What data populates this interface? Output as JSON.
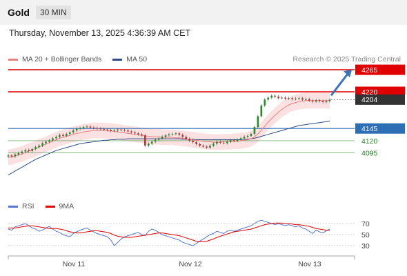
{
  "header": {
    "symbol": "Gold",
    "interval": "30 MIN"
  },
  "timestamp": "Thursday, November 13, 2025 4:36:39 AM CET",
  "legend": {
    "price": [
      {
        "label": "MA 20 + Bollinger Bands",
        "color": "#e88080"
      },
      {
        "label": "MA 50",
        "color": "#2c4a86"
      }
    ],
    "rsi": [
      {
        "label": "RSI",
        "color": "#5577cc"
      },
      {
        "label": "9MA",
        "color": "#e00000"
      }
    ]
  },
  "watermark": "Research © 2025 Trading Central",
  "colors": {
    "resistance": "#e00000",
    "support": "#2e6eb5",
    "target": "#3b73b9",
    "bull": "#2a8a2a",
    "bear": "#c03030",
    "price_tag": "#333333"
  },
  "chart_data": [
    {
      "type": "candlestick",
      "x_ticks": [
        "Nov 11",
        "Nov 12",
        "Nov 13"
      ],
      "last_price": {
        "label": "4204",
        "value": 4204
      },
      "levels": [
        {
          "label": "4265",
          "value": 4265,
          "kind": "resistance"
        },
        {
          "label": "4220",
          "value": 4220,
          "kind": "resistance"
        },
        {
          "label": "4145",
          "value": 4145,
          "kind": "pivot"
        },
        {
          "label": "4120",
          "value": 4120,
          "kind": "support"
        },
        {
          "label": "4095",
          "value": 4095,
          "kind": "support"
        }
      ],
      "arrow": {
        "from": 4204,
        "to": 4265,
        "direction": "up"
      },
      "close": [
        4090,
        4088,
        4092,
        4095,
        4098,
        4101,
        4099,
        4103,
        4107,
        4110,
        4115,
        4118,
        4121,
        4125,
        4128,
        4132,
        4130,
        4134,
        4137,
        4141,
        4144,
        4146,
        4148,
        4149,
        4147,
        4146,
        4145,
        4144,
        4143,
        4142,
        4140,
        4141,
        4143,
        4142,
        4141,
        4139,
        4137,
        4135,
        4133,
        4131,
        4110,
        4114,
        4118,
        4122,
        4125,
        4128,
        4131,
        4133,
        4134,
        4135,
        4132,
        4128,
        4124,
        4120,
        4117,
        4113,
        4110,
        4108,
        4106,
        4110,
        4114,
        4118,
        4116,
        4115,
        4118,
        4121,
        4120,
        4122,
        4125,
        4128,
        4130,
        4134,
        4148,
        4170,
        4192,
        4204,
        4208,
        4212,
        4210,
        4207,
        4208,
        4206,
        4207,
        4205,
        4206,
        4207,
        4204,
        4205,
        4202,
        4200,
        4203,
        4201,
        4199,
        4201,
        4204
      ],
      "ma20": [
        4086,
        4087,
        4089,
        4091,
        4093,
        4096,
        4099,
        4101,
        4104,
        4107,
        4110,
        4113,
        4116,
        4119,
        4122,
        4125,
        4127,
        4129,
        4131,
        4133,
        4135,
        4136,
        4138,
        4139,
        4140,
        4141,
        4141,
        4141,
        4141,
        4140,
        4140,
        4139,
        4138,
        4137,
        4136,
        4135,
        4134,
        4133,
        4132,
        4131,
        4130,
        4129,
        4128,
        4128,
        4128,
        4127,
        4127,
        4127,
        4127,
        4126,
        4126,
        4125,
        4124,
        4123,
        4122,
        4121,
        4120,
        4119,
        4118,
        4118,
        4117,
        4117,
        4117,
        4118,
        4118,
        4118,
        4119,
        4119,
        4120,
        4121,
        4122,
        4124,
        4128,
        4134,
        4142,
        4150,
        4158,
        4165,
        4172,
        4178,
        4184,
        4189,
        4193,
        4196,
        4198,
        4200,
        4201,
        4202,
        4202,
        4202,
        4202,
        4202,
        4202,
        4202,
        4202
      ],
      "ma50": [
        4050,
        4054,
        4058,
        4062,
        4066,
        4070,
        4074,
        4078,
        4082,
        4085,
        4088,
        4091,
        4094,
        4097,
        4100,
        4102,
        4104,
        4106,
        4108,
        4110,
        4112,
        4114,
        4115,
        4116,
        4117,
        4118,
        4119,
        4120,
        4121,
        4121,
        4122,
        4122,
        4123,
        4123,
        4123,
        4124,
        4124,
        4124,
        4124,
        4124,
        4124,
        4124,
        4124,
        4124,
        4124,
        4124,
        4124,
        4124,
        4124,
        4124,
        4124,
        4123,
        4123,
        4123,
        4123,
        4122,
        4122,
        4122,
        4122,
        4122,
        4122,
        4122,
        4122,
        4122,
        4122,
        4122,
        4122,
        4122,
        4122,
        4123,
        4123,
        4124,
        4125,
        4127,
        4129,
        4131,
        4133,
        4135,
        4137,
        4139,
        4141,
        4143,
        4145,
        4147,
        4149,
        4151,
        4152,
        4153,
        4154,
        4155,
        4156,
        4157,
        4158,
        4159,
        4160
      ]
    },
    {
      "type": "line",
      "title": "RSI",
      "y_ticks": [
        "70",
        "50",
        "30"
      ],
      "rsi": [
        60,
        58,
        64,
        66,
        68,
        70,
        66,
        62,
        60,
        56,
        58,
        62,
        65,
        60,
        56,
        54,
        50,
        48,
        46,
        52,
        55,
        58,
        60,
        62,
        58,
        55,
        52,
        50,
        48,
        46,
        40,
        30,
        36,
        42,
        46,
        48,
        50,
        52,
        54,
        50,
        48,
        56,
        60,
        58,
        54,
        50,
        48,
        46,
        44,
        42,
        40,
        36,
        34,
        32,
        30,
        34,
        38,
        42,
        46,
        50,
        52,
        56,
        54,
        52,
        56,
        58,
        56,
        58,
        60,
        62,
        64,
        66,
        70,
        74,
        76,
        74,
        72,
        70,
        68,
        70,
        68,
        66,
        68,
        66,
        64,
        66,
        62,
        60,
        56,
        52,
        58,
        55,
        53,
        57,
        60
      ],
      "ma9": [
        62,
        62,
        62,
        63,
        64,
        65,
        66,
        66,
        65,
        64,
        63,
        62,
        61,
        61,
        61,
        60,
        59,
        57,
        55,
        54,
        53,
        53,
        54,
        55,
        56,
        57,
        57,
        56,
        55,
        54,
        52,
        49,
        47,
        46,
        45,
        45,
        45,
        46,
        47,
        48,
        49,
        50,
        51,
        52,
        53,
        53,
        52,
        51,
        50,
        49,
        48,
        46,
        44,
        42,
        40,
        38,
        37,
        37,
        38,
        40,
        42,
        45,
        47,
        49,
        51,
        53,
        55,
        56,
        57,
        58,
        59,
        60,
        62,
        64,
        66,
        68,
        69,
        70,
        71,
        71,
        71,
        70,
        70,
        69,
        68,
        68,
        67,
        66,
        65,
        63,
        61,
        60,
        59,
        58,
        58
      ]
    }
  ]
}
